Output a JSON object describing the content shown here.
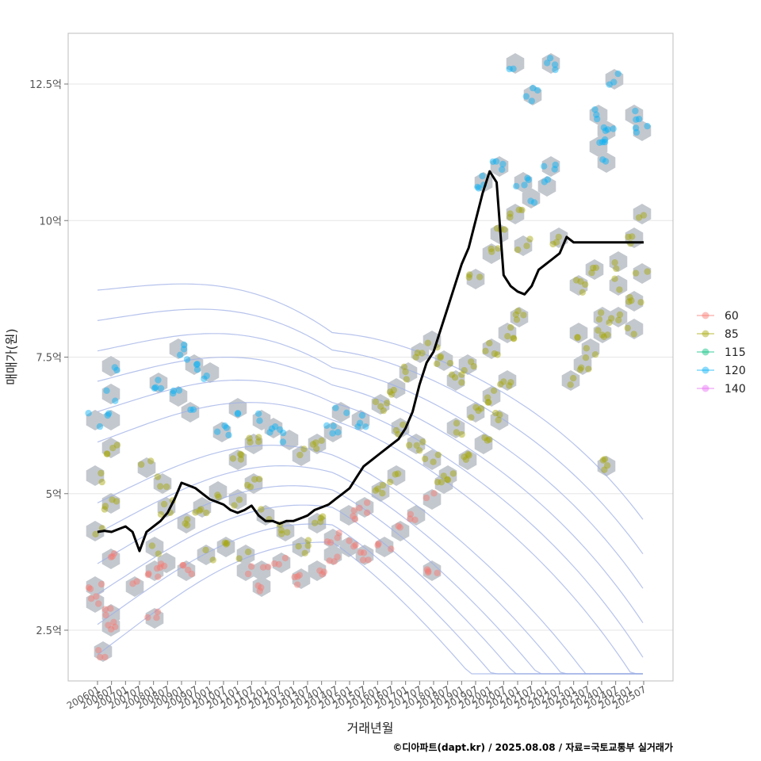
{
  "chart_data": {
    "type": "line",
    "xlabel": "거래년월",
    "ylabel": "매매가(원)",
    "caption": "©디아파트(dapt.kr) / 2025.08.08 / 자료=국토교통부 실거래가",
    "ylim": [
      1.6,
      13.5
    ],
    "y_ticks": [
      {
        "value": 2.5,
        "label": "2.5억"
      },
      {
        "value": 5,
        "label": "5억"
      },
      {
        "value": 7.5,
        "label": "7.5억"
      },
      {
        "value": 10,
        "label": "10억"
      },
      {
        "value": 12.5,
        "label": "12.5억"
      }
    ],
    "x_ticks": [
      "200601",
      "200607",
      "200701",
      "200707",
      "200801",
      "200807",
      "200901",
      "200907",
      "201001",
      "201007",
      "201101",
      "201107",
      "201201",
      "201207",
      "201301",
      "201307",
      "201401",
      "201407",
      "201501",
      "201507",
      "201601",
      "201607",
      "201701",
      "201707",
      "201801",
      "201807",
      "201901",
      "201907",
      "202001",
      "202007",
      "202101",
      "202107",
      "202201",
      "202207",
      "202301",
      "202307",
      "202401",
      "202407",
      "202501",
      "202507"
    ],
    "legend": {
      "position": "right",
      "entries": [
        {
          "label": "60",
          "color": "#F8766D"
        },
        {
          "label": "85",
          "color": "#A3A500"
        },
        {
          "label": "115",
          "color": "#00BF7D"
        },
        {
          "label": "120",
          "color": "#00B0F6"
        },
        {
          "label": "140",
          "color": "#E76BF3"
        }
      ]
    },
    "colors": {
      "hex": "#C3C8CE",
      "contour": "#9DAFE6",
      "line": "#000000",
      "grid": "#E6E6E6"
    },
    "series": [
      {
        "type": "line",
        "x": [
          "2006-01",
          "2006-04",
          "2006-07",
          "2006-10",
          "2007-01",
          "2007-04",
          "2007-07",
          "2007-10",
          "2008-01",
          "2008-04",
          "2008-07",
          "2008-10",
          "2009-01",
          "2009-04",
          "2009-07",
          "2009-10",
          "2010-01",
          "2010-04",
          "2010-07",
          "2010-10",
          "2011-01",
          "2011-04",
          "2011-07",
          "2011-10",
          "2012-01",
          "2012-04",
          "2012-07",
          "2012-10",
          "2013-01",
          "2013-04",
          "2013-07",
          "2013-10",
          "2014-01",
          "2014-04",
          "2014-07",
          "2014-10",
          "2015-01",
          "2015-04",
          "2015-07",
          "2015-10",
          "2016-01",
          "2016-04",
          "2016-07",
          "2016-10",
          "2017-01",
          "2017-04",
          "2017-07",
          "2017-10",
          "2018-01",
          "2018-04",
          "2018-07",
          "2018-10",
          "2019-01",
          "2019-04",
          "2019-07",
          "2019-10",
          "2020-01",
          "2020-04",
          "2020-07",
          "2020-10",
          "2021-01",
          "2021-04",
          "2021-07",
          "2021-10",
          "2022-01",
          "2022-04",
          "2022-07",
          "2022-10",
          "2023-01",
          "2023-04",
          "2023-07",
          "2023-10",
          "2024-01",
          "2024-04",
          "2024-07",
          "2024-10",
          "2025-01",
          "2025-04",
          "2025-07"
        ],
        "values": [
          4.3,
          4.32,
          4.3,
          4.35,
          4.4,
          4.3,
          3.95,
          4.3,
          4.4,
          4.5,
          4.65,
          4.9,
          5.2,
          5.15,
          5.1,
          5.0,
          4.9,
          4.85,
          4.8,
          4.7,
          4.65,
          4.7,
          4.78,
          4.6,
          4.5,
          4.5,
          4.45,
          4.5,
          4.5,
          4.55,
          4.6,
          4.7,
          4.75,
          4.8,
          4.9,
          5.0,
          5.1,
          5.3,
          5.5,
          5.6,
          5.7,
          5.8,
          5.9,
          6.0,
          6.2,
          6.5,
          7.0,
          7.4,
          7.6,
          8.0,
          8.4,
          8.8,
          9.2,
          9.5,
          10.0,
          10.5,
          10.9,
          10.7,
          9.0,
          8.8,
          8.7,
          8.65,
          8.8,
          9.1,
          9.2,
          9.3,
          9.4,
          9.7,
          9.6,
          9.6,
          9.6,
          9.6,
          9.6,
          9.6,
          9.6,
          9.6,
          9.6,
          9.6,
          9.6
        ]
      }
    ]
  }
}
